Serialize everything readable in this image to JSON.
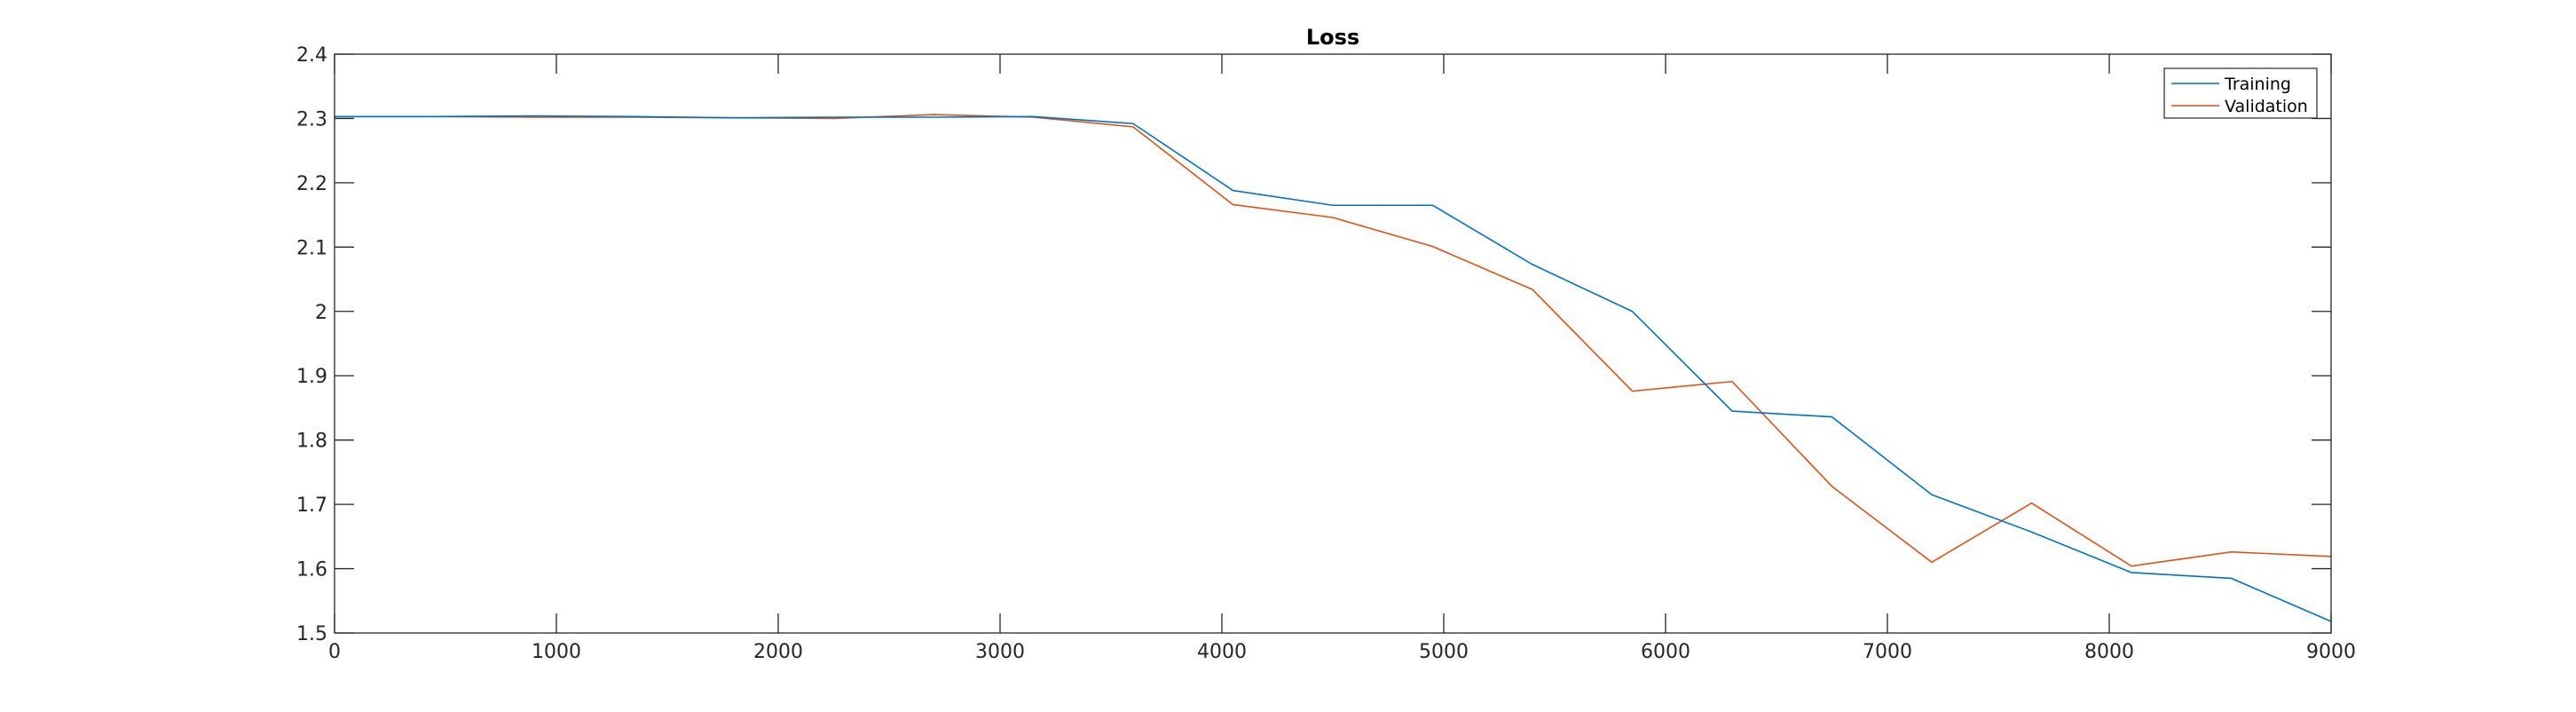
{
  "chart_data": {
    "type": "line",
    "title": "Loss",
    "xlabel": "",
    "ylabel": "",
    "xlim": [
      0,
      9000
    ],
    "ylim": [
      1.5,
      2.4
    ],
    "x_ticks": [
      "0",
      "1000",
      "2000",
      "3000",
      "4000",
      "5000",
      "6000",
      "7000",
      "8000",
      "9000"
    ],
    "y_ticks": [
      "1.5",
      "1.6",
      "1.7",
      "1.8",
      "1.9",
      "2",
      "2.1",
      "2.2",
      "2.3",
      "2.4"
    ],
    "grid": false,
    "legend_position": "top-right",
    "series": [
      {
        "name": "Training",
        "color": "#0072BD",
        "x": [
          0,
          450,
          900,
          1350,
          1800,
          2250,
          2700,
          3150,
          3600,
          4050,
          4500,
          4950,
          5400,
          5850,
          6300,
          6750,
          7200,
          7650,
          8100,
          8550,
          9000
        ],
        "y": [
          2.303,
          2.303,
          2.304,
          2.303,
          2.301,
          2.302,
          2.302,
          2.303,
          2.292,
          2.188,
          2.165,
          2.165,
          2.073,
          2.0,
          1.845,
          1.836,
          1.715,
          1.657,
          1.594,
          1.585,
          1.518
        ]
      },
      {
        "name": "Validation",
        "color": "#D95319",
        "x": [
          0,
          450,
          900,
          1350,
          1800,
          2250,
          2700,
          3150,
          3600,
          4050,
          4500,
          4950,
          5400,
          5850,
          6300,
          6750,
          7200,
          7650,
          8100,
          8550,
          9000
        ],
        "y": [
          2.303,
          2.303,
          2.302,
          2.302,
          2.301,
          2.3,
          2.306,
          2.302,
          2.287,
          2.166,
          2.146,
          2.101,
          2.034,
          1.876,
          1.891,
          1.728,
          1.61,
          1.702,
          1.604,
          1.626,
          1.619
        ]
      }
    ]
  }
}
